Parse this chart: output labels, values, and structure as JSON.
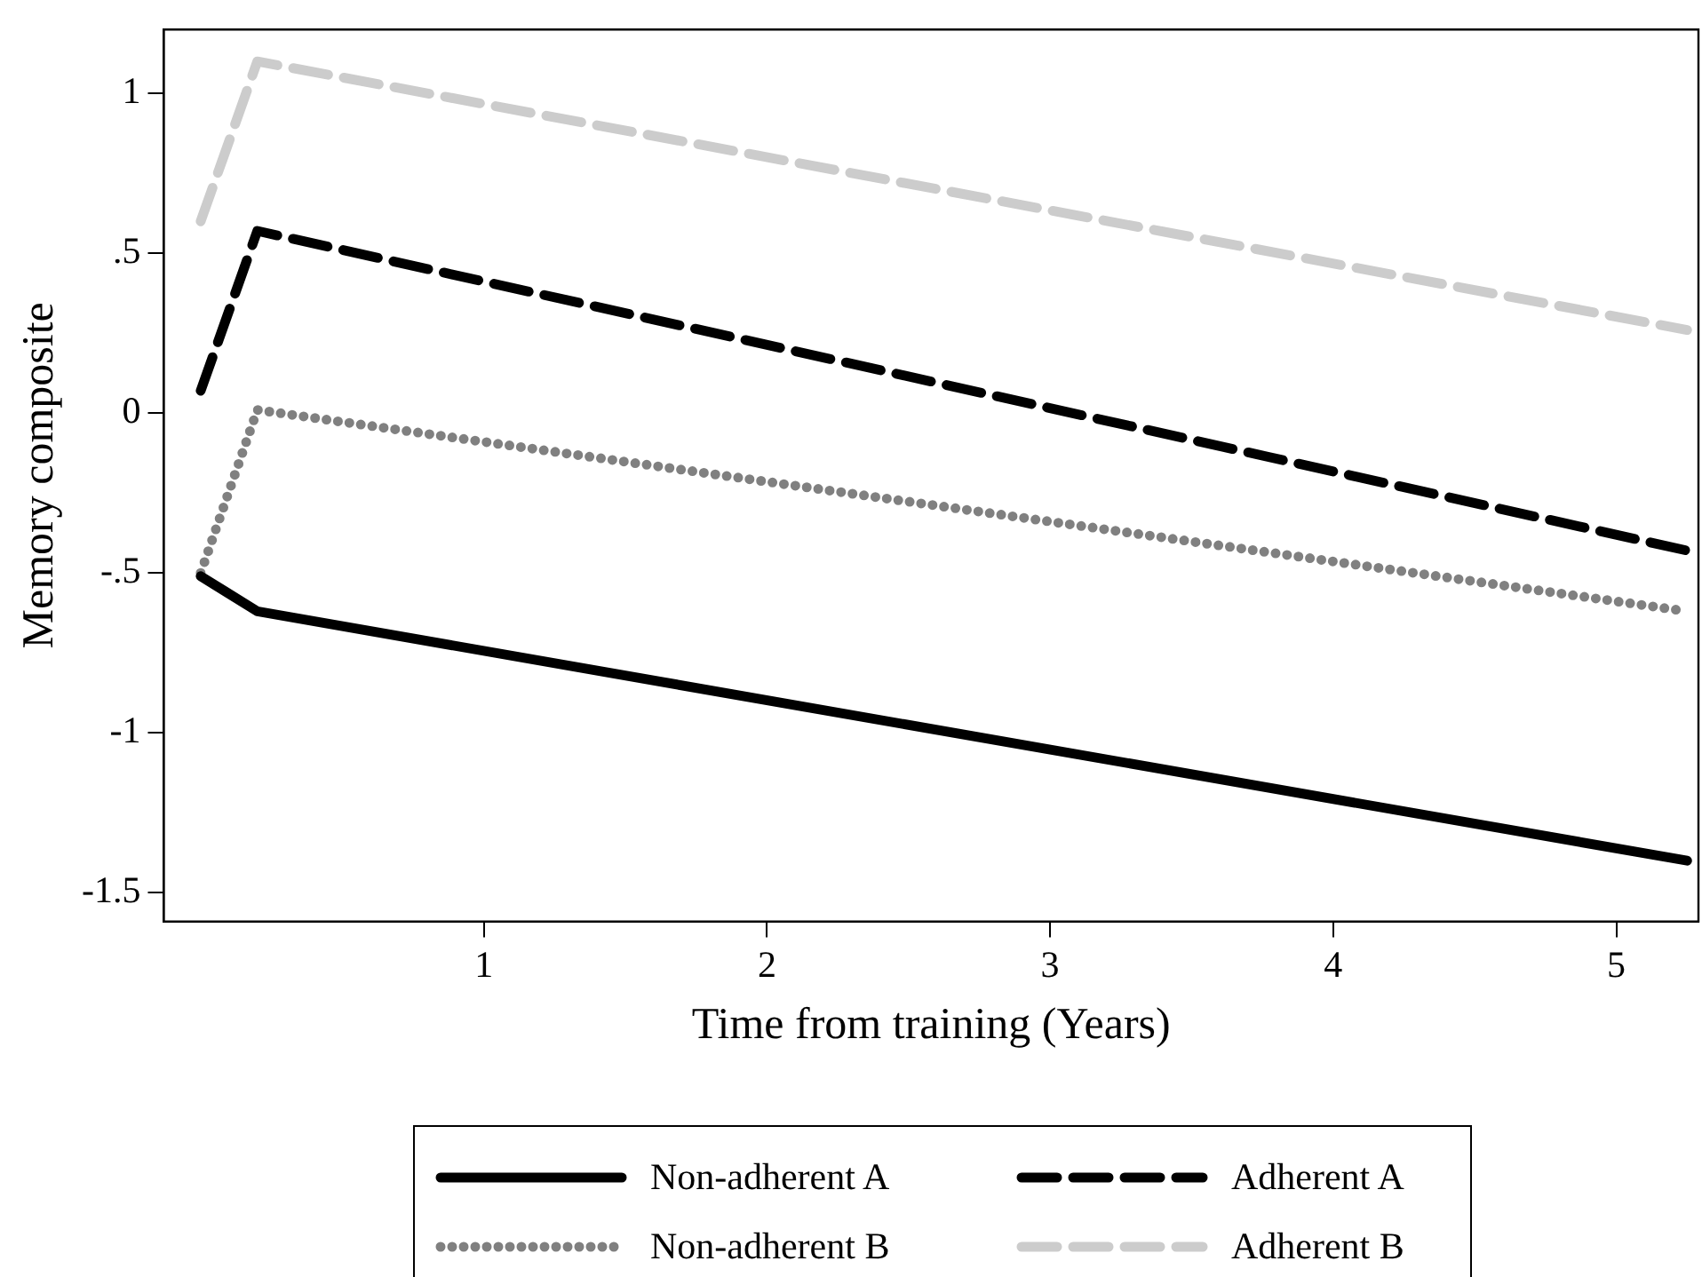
{
  "chart_data": {
    "type": "line",
    "xlabel": "Time from training (Years)",
    "ylabel": "Memory composite",
    "xlim": [
      -0.13,
      5.29
    ],
    "ylim": [
      -1.59,
      1.2
    ],
    "xticks": [
      1,
      2,
      3,
      4,
      5
    ],
    "yticks": [
      {
        "value": -1.5,
        "label": "-1.5"
      },
      -1,
      {
        "value": -0.5,
        "label": "-.5"
      },
      0,
      {
        "value": 0.5,
        "label": ".5"
      },
      1
    ],
    "grid": false,
    "legend": "bottom",
    "marker": "none",
    "series": [
      {
        "name": "Non-adherent A",
        "color": "#000000",
        "line_style": "solid",
        "x": [
          0,
          0.2,
          5.25
        ],
        "values": [
          -0.51,
          -0.62,
          -1.4
        ]
      },
      {
        "name": "Adherent A",
        "color": "#000000",
        "line_style": "dashed",
        "x": [
          0,
          0.2,
          5.25
        ],
        "values": [
          0.07,
          0.57,
          -0.43
        ]
      },
      {
        "name": "Non-adherent B",
        "color": "#808080",
        "line_style": "dotted",
        "x": [
          0,
          0.2,
          5.25
        ],
        "values": [
          -0.5,
          0.01,
          -0.62
        ]
      },
      {
        "name": "Adherent B",
        "color": "#cccccc",
        "line_style": "dashed",
        "x": [
          0,
          0.2,
          5.25
        ],
        "values": [
          0.6,
          1.1,
          0.26
        ]
      }
    ]
  }
}
